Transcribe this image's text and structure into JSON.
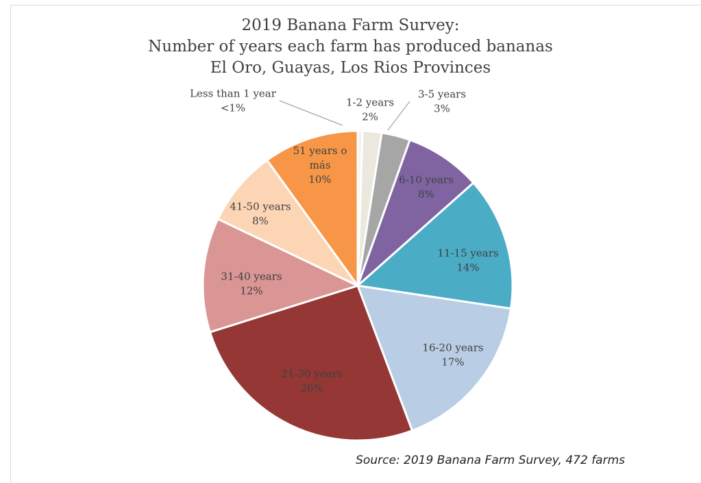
{
  "chart_data": {
    "type": "pie",
    "title_lines": [
      "2019 Banana Farm Survey:",
      "Number of years each farm has produced bananas",
      "El Oro, Guayas, Los Rios Provinces"
    ],
    "source": "Source: 2019 Banana Farm Survey, 472 farms",
    "slices": [
      {
        "name": "Less than 1 year",
        "value": 0.5,
        "label_pct": "<1%",
        "color": "#f2f2f2"
      },
      {
        "name": "1-2 years",
        "value": 2,
        "label_pct": "2%",
        "color": "#ebe9dd"
      },
      {
        "name": "3-5 years",
        "value": 3,
        "label_pct": "3%",
        "color": "#a6a6a6"
      },
      {
        "name": "6-10 years",
        "value": 8,
        "label_pct": "8%",
        "color": "#8064a2"
      },
      {
        "name": "11-15 years",
        "value": 14,
        "label_pct": "14%",
        "color": "#4bacc6"
      },
      {
        "name": "16-20 years",
        "value": 17,
        "label_pct": "17%",
        "color": "#b9cde5"
      },
      {
        "name": "21-30 years",
        "value": 26,
        "label_pct": "26%",
        "color": "#953735"
      },
      {
        "name": "31-40 years",
        "value": 12,
        "label_pct": "12%",
        "color": "#d99694"
      },
      {
        "name": "41-50 years",
        "value": 8,
        "label_pct": "8%",
        "color": "#fcd5b5"
      },
      {
        "name": "51 years o más",
        "value": 10,
        "label_pct": "10%",
        "color": "#f79646"
      }
    ]
  }
}
